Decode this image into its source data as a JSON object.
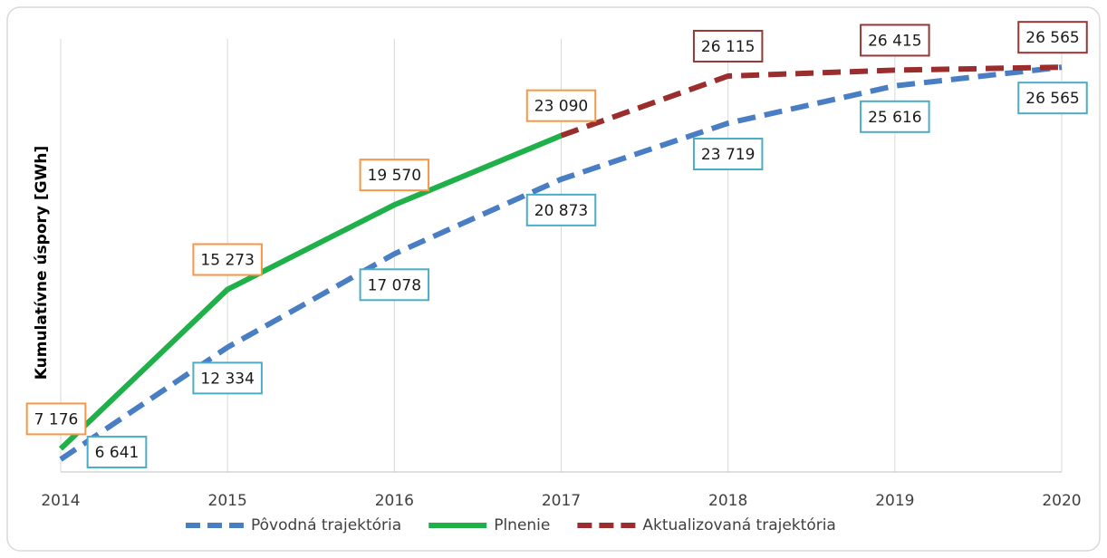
{
  "chart_data": {
    "type": "line",
    "y_label": "Kumulatívne úspory [GWh]",
    "categories": [
      "2014",
      "2015",
      "2016",
      "2017",
      "2018",
      "2019",
      "2020"
    ],
    "ylim": [
      6000,
      28000
    ],
    "grid": true,
    "legend": "bottom",
    "series": [
      {
        "name": "Pôvodná trajektória",
        "color": "#4a7ec4",
        "dashed": true,
        "label_color": "#4bacc6",
        "values": [
          6641,
          12334,
          17078,
          20873,
          23719,
          25616,
          26565
        ],
        "value_labels": [
          "6 641",
          "12 334",
          "17 078",
          "20 873",
          "23 719",
          "25 616",
          "26 565"
        ]
      },
      {
        "name": "Plnenie",
        "color": "#1fb04a",
        "dashed": false,
        "label_color": "#f79646",
        "values": [
          7176,
          15273,
          19570,
          23090,
          null,
          null,
          null
        ],
        "value_labels": [
          "7 176",
          "15 273",
          "19 570",
          "23 090",
          null,
          null,
          null
        ]
      },
      {
        "name": "Aktualizovaná trajektória",
        "color": "#9b2d2d",
        "dashed": true,
        "label_color": "#953735",
        "values": [
          null,
          null,
          null,
          23090,
          26115,
          26415,
          26565
        ],
        "value_labels": [
          null,
          null,
          null,
          null,
          "26 115",
          "26 415",
          "26 565"
        ]
      }
    ]
  }
}
